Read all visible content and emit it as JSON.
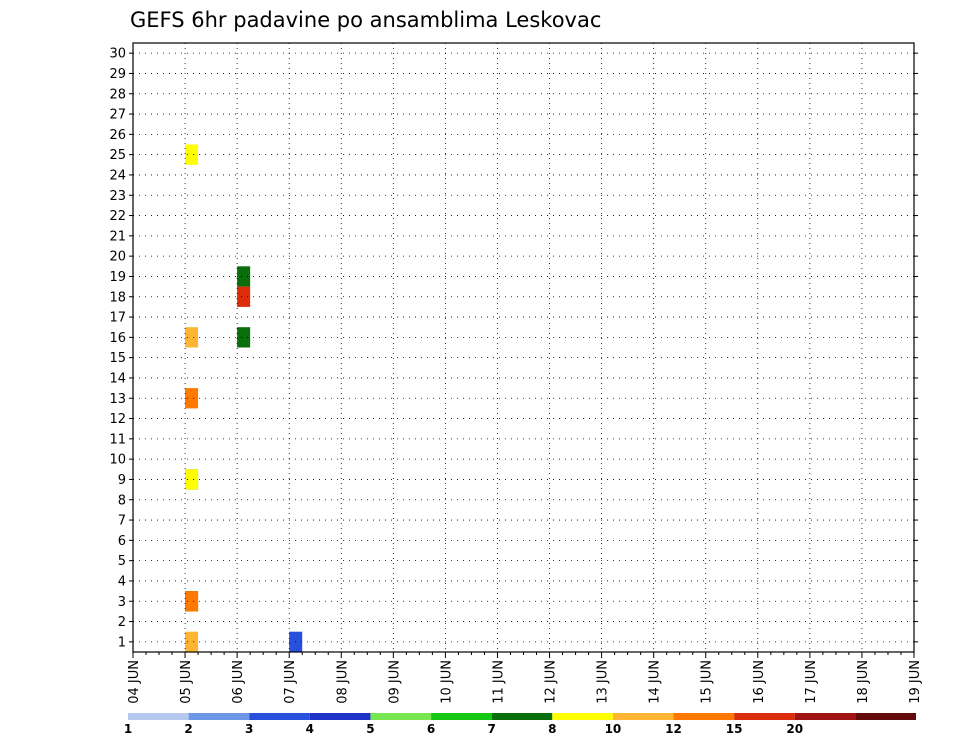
{
  "chart_data": {
    "type": "heatmap",
    "title": "GEFS 6hr padavine po ansamblima Leskovac",
    "y_members": [
      "1",
      "2",
      "3",
      "4",
      "5",
      "6",
      "7",
      "8",
      "9",
      "10",
      "11",
      "12",
      "13",
      "14",
      "15",
      "16",
      "17",
      "18",
      "19",
      "20",
      "21",
      "22",
      "23",
      "24",
      "25",
      "26",
      "27",
      "28",
      "29",
      "30"
    ],
    "x_labels": [
      "04 JUN",
      "05 JUN",
      "06 JUN",
      "07 JUN",
      "08 JUN",
      "09 JUN",
      "10 JUN",
      "11 JUN",
      "12 JUN",
      "13 JUN",
      "14 JUN",
      "15 JUN",
      "16 JUN",
      "17 JUN",
      "18 JUN",
      "19 JUN"
    ],
    "steps_per_day": 4,
    "colorbar": {
      "thresholds": [
        "1",
        "2",
        "3",
        "4",
        "5",
        "6",
        "7",
        "8",
        "10",
        "12",
        "15",
        "20"
      ],
      "colors": [
        "#b4c8f0",
        "#6e96e6",
        "#2850dc",
        "#1e32c8",
        "#78e650",
        "#14c814",
        "#0a6e0a",
        "#ffff00",
        "#ffb432",
        "#ff7800",
        "#dc2d0a",
        "#a01414",
        "#640a0a"
      ]
    },
    "cells": [
      {
        "x": "07 JUN",
        "m": 1,
        "c": 2
      },
      {
        "x": "05 JUN",
        "m": 25,
        "c": 7
      },
      {
        "x": "06 JUN",
        "m": 19,
        "c": 6
      },
      {
        "x": "06 JUN",
        "m": 18,
        "c": 10
      },
      {
        "x": "05 JUN",
        "m": 16,
        "c": 8
      },
      {
        "x": "06 JUN",
        "m": 16,
        "c": 6
      },
      {
        "x": "05 JUN",
        "m": 13,
        "c": 9
      },
      {
        "x": "05 JUN",
        "m": 9,
        "c": 6
      },
      {
        "x": "05 JUN",
        "m": 9,
        "c": 7
      },
      {
        "x": "05 JUN",
        "m": 3,
        "c": 6
      },
      {
        "x": "05 JUN",
        "m": 3,
        "c": 9
      },
      {
        "x": "05 JUN",
        "m": 1,
        "c": 8
      }
    ]
  }
}
